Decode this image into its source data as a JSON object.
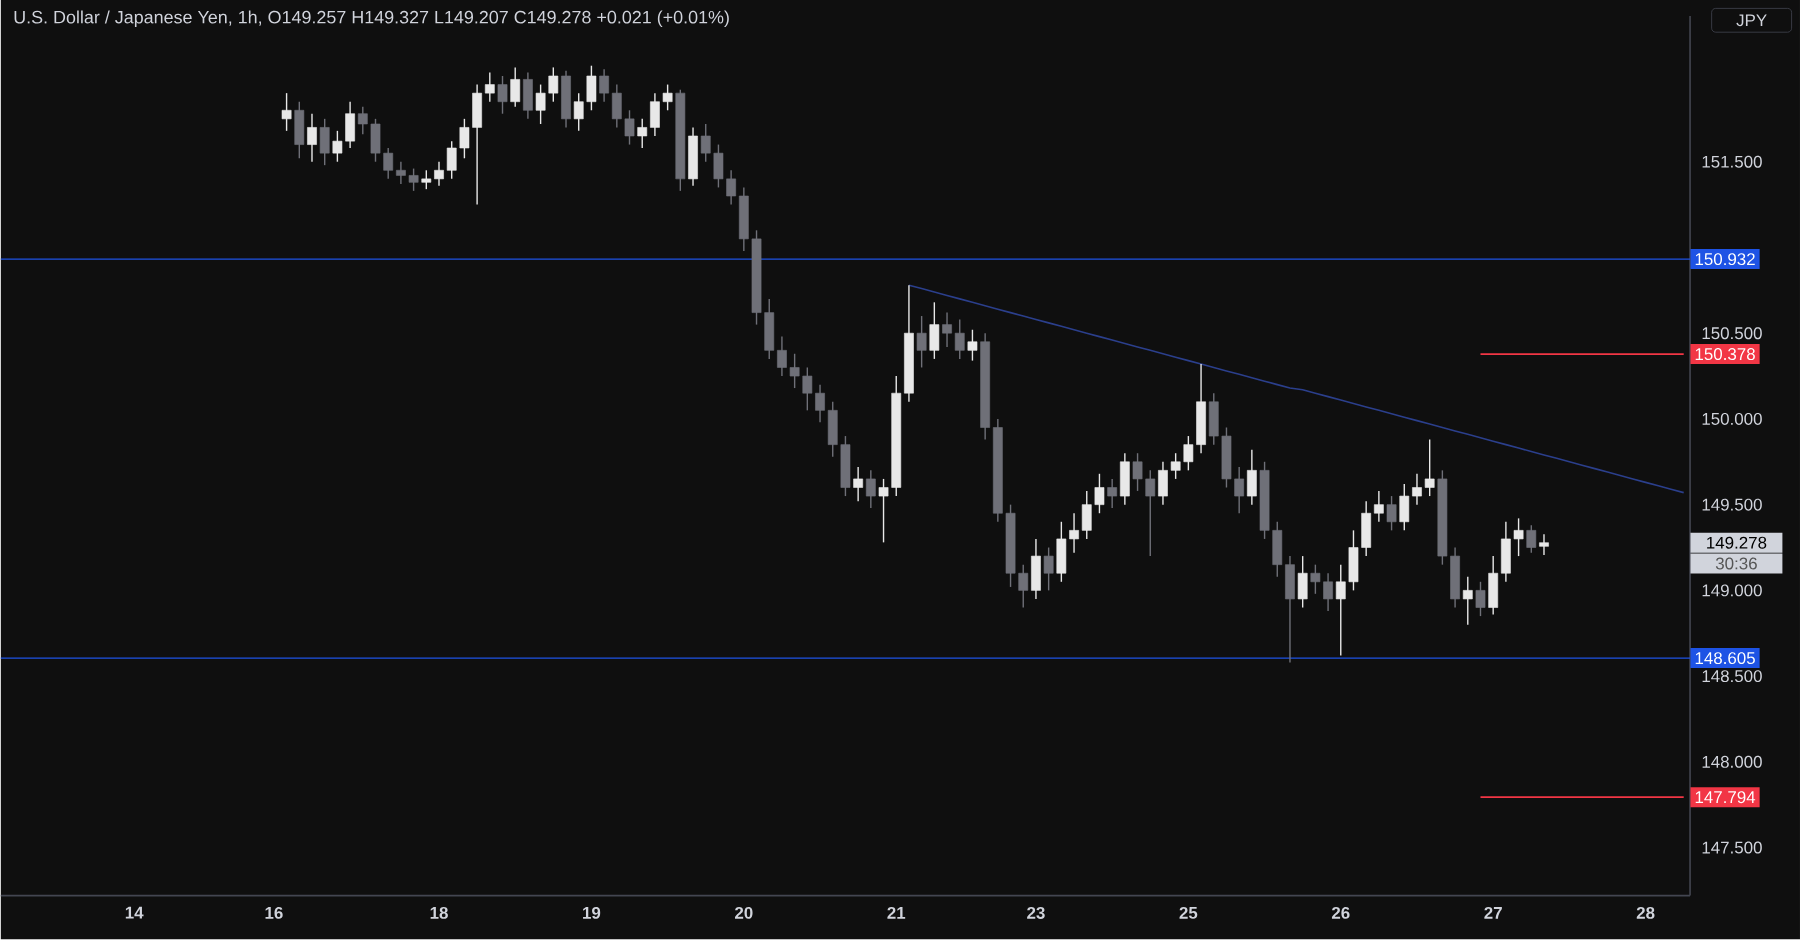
{
  "chart_data": {
    "type": "candlestick",
    "title": "U.S. Dollar / Japanese Yen, 1h, O149.257 H149.327 L149.207 C149.278 +0.021 (+0.01%)",
    "annotations": [
      "JPY",
      "149.278",
      "30:36"
    ],
    "ylim": [
      147.22,
      152.35
    ],
    "yticks": [
      {
        "value": 147.5,
        "label": "147.500"
      },
      {
        "value": 148.0,
        "label": "148.000"
      },
      {
        "value": 148.5,
        "label": "148.500"
      },
      {
        "value": 149.0,
        "label": "149.000"
      },
      {
        "value": 149.5,
        "label": "149.500"
      },
      {
        "value": 150.0,
        "label": "150.000"
      },
      {
        "value": 150.5,
        "label": "150.500"
      },
      {
        "value": 151.5,
        "label": "151.500"
      }
    ],
    "ref_lines": [
      {
        "axis": "y",
        "value": 150.932,
        "label": "150.932",
        "color": "#1e53e5"
      },
      {
        "axis": "y",
        "value": 148.605,
        "label": "148.605",
        "color": "#1e53e5"
      }
    ],
    "categories": [
      null,
      null,
      null,
      null,
      null,
      null,
      null,
      null,
      null,
      null,
      "14",
      null,
      null,
      null,
      null,
      null,
      null,
      null,
      null,
      null,
      null,
      "16",
      null,
      null,
      null,
      null,
      null,
      null,
      null,
      null,
      null,
      null,
      null,
      null,
      "18",
      null,
      null,
      null,
      null,
      null,
      null,
      null,
      null,
      null,
      null,
      null,
      "19",
      null,
      null,
      null,
      null,
      null,
      null,
      null,
      null,
      null,
      null,
      null,
      "20",
      null,
      null,
      null,
      null,
      null,
      null,
      null,
      null,
      null,
      null,
      null,
      "21",
      null,
      null,
      null,
      null,
      null,
      null,
      null,
      null,
      null,
      null,
      "23",
      null,
      null,
      null,
      null,
      null,
      null,
      null,
      null,
      null,
      null,
      null,
      "25",
      null,
      null,
      null,
      null,
      null,
      null,
      null,
      null,
      null,
      null,
      null,
      "26",
      null,
      null,
      null,
      null,
      null,
      null,
      null,
      null,
      null,
      null,
      null,
      "27",
      null,
      null,
      null,
      null,
      null,
      null,
      null,
      null,
      null,
      null,
      null,
      "28",
      null,
      null,
      null
    ],
    "series": [
      {
        "type": "line",
        "color": "#2b3f8c",
        "values": [
          null,
          null,
          null,
          null,
          null,
          null,
          null,
          null,
          null,
          null,
          null,
          null,
          null,
          null,
          null,
          null,
          null,
          null,
          null,
          null,
          null,
          null,
          null,
          null,
          null,
          null,
          null,
          null,
          null,
          null,
          null,
          null,
          null,
          null,
          null,
          null,
          null,
          null,
          null,
          null,
          null,
          null,
          null,
          null,
          null,
          null,
          null,
          null,
          null,
          null,
          null,
          null,
          null,
          null,
          null,
          null,
          null,
          null,
          null,
          null,
          null,
          null,
          null,
          null,
          null,
          null,
          null,
          null,
          null,
          null,
          null,
          150.78,
          150.76,
          150.74,
          150.72,
          150.7,
          150.68,
          150.66,
          150.64,
          150.62,
          150.6,
          150.58,
          150.56,
          150.54,
          150.52,
          150.5,
          150.48,
          150.46,
          150.44,
          150.42,
          150.4,
          150.38,
          150.36,
          150.34,
          150.32,
          150.3,
          150.28,
          150.26,
          150.24,
          150.22,
          150.2,
          150.18,
          150.17,
          150.15,
          150.13,
          150.11,
          150.09,
          150.07,
          150.05,
          150.03,
          150.01,
          149.99,
          149.97,
          149.95,
          149.93,
          149.91,
          149.89,
          149.87,
          149.85,
          149.83,
          149.81,
          149.79,
          149.77,
          149.75,
          149.73,
          149.71,
          149.69,
          149.67,
          149.65,
          149.63,
          149.61,
          149.59,
          149.57
        ]
      },
      {
        "type": "line",
        "color": "#f23645",
        "values": [
          null,
          null,
          null,
          null,
          null,
          null,
          null,
          null,
          null,
          null,
          null,
          null,
          null,
          null,
          null,
          null,
          null,
          null,
          null,
          null,
          null,
          null,
          null,
          null,
          null,
          null,
          null,
          null,
          null,
          null,
          null,
          null,
          null,
          null,
          null,
          null,
          null,
          null,
          null,
          null,
          null,
          null,
          null,
          null,
          null,
          null,
          null,
          null,
          null,
          null,
          null,
          null,
          null,
          null,
          null,
          null,
          null,
          null,
          null,
          null,
          null,
          null,
          null,
          null,
          null,
          null,
          null,
          null,
          null,
          null,
          null,
          null,
          null,
          null,
          null,
          null,
          null,
          null,
          null,
          null,
          null,
          null,
          null,
          null,
          null,
          null,
          null,
          null,
          null,
          null,
          null,
          null,
          null,
          null,
          null,
          null,
          null,
          null,
          null,
          null,
          null,
          null,
          null,
          null,
          null,
          null,
          null,
          null,
          null,
          null,
          null,
          null,
          null,
          null,
          null,
          null,
          150.378,
          150.378,
          150.378,
          150.378,
          150.378,
          150.378,
          150.378,
          150.378,
          150.378,
          150.378,
          150.378,
          150.378,
          150.378,
          150.378,
          150.378,
          150.378,
          150.378
        ],
        "value_labels": [
          null,
          null,
          null,
          null,
          null,
          null,
          null,
          null,
          null,
          null,
          null,
          null,
          null,
          null,
          null,
          null,
          null,
          null,
          null,
          null,
          null,
          null,
          null,
          null,
          null,
          null,
          null,
          null,
          null,
          null,
          null,
          null,
          null,
          null,
          null,
          null,
          null,
          null,
          null,
          null,
          null,
          null,
          null,
          null,
          null,
          null,
          null,
          null,
          null,
          null,
          null,
          null,
          null,
          null,
          null,
          null,
          null,
          null,
          null,
          null,
          null,
          null,
          null,
          null,
          null,
          null,
          null,
          null,
          null,
          null,
          null,
          null,
          null,
          null,
          null,
          null,
          null,
          null,
          null,
          null,
          null,
          null,
          null,
          null,
          null,
          null,
          null,
          null,
          null,
          null,
          null,
          null,
          null,
          null,
          null,
          null,
          null,
          null,
          null,
          null,
          null,
          null,
          null,
          null,
          null,
          null,
          null,
          null,
          null,
          null,
          null,
          null,
          null,
          null,
          null,
          null,
          null,
          null,
          null,
          null,
          null,
          null,
          null,
          null,
          null,
          null,
          null,
          null,
          null,
          null,
          null,
          null,
          "150.378"
        ]
      },
      {
        "type": "line",
        "color": "#f23645",
        "values": [
          null,
          null,
          null,
          null,
          null,
          null,
          null,
          null,
          null,
          null,
          null,
          null,
          null,
          null,
          null,
          null,
          null,
          null,
          null,
          null,
          null,
          null,
          null,
          null,
          null,
          null,
          null,
          null,
          null,
          null,
          null,
          null,
          null,
          null,
          null,
          null,
          null,
          null,
          null,
          null,
          null,
          null,
          null,
          null,
          null,
          null,
          null,
          null,
          null,
          null,
          null,
          null,
          null,
          null,
          null,
          null,
          null,
          null,
          null,
          null,
          null,
          null,
          null,
          null,
          null,
          null,
          null,
          null,
          null,
          null,
          null,
          null,
          null,
          null,
          null,
          null,
          null,
          null,
          null,
          null,
          null,
          null,
          null,
          null,
          null,
          null,
          null,
          null,
          null,
          null,
          null,
          null,
          null,
          null,
          null,
          null,
          null,
          null,
          null,
          null,
          null,
          null,
          null,
          null,
          null,
          null,
          null,
          null,
          null,
          null,
          null,
          null,
          null,
          null,
          null,
          null,
          147.794,
          147.794,
          147.794,
          147.794,
          147.794,
          147.794,
          147.794,
          147.794,
          147.794,
          147.794,
          147.794,
          147.794,
          147.794,
          147.794,
          147.794,
          147.794,
          147.794
        ],
        "value_labels": [
          null,
          null,
          null,
          null,
          null,
          null,
          null,
          null,
          null,
          null,
          null,
          null,
          null,
          null,
          null,
          null,
          null,
          null,
          null,
          null,
          null,
          null,
          null,
          null,
          null,
          null,
          null,
          null,
          null,
          null,
          null,
          null,
          null,
          null,
          null,
          null,
          null,
          null,
          null,
          null,
          null,
          null,
          null,
          null,
          null,
          null,
          null,
          null,
          null,
          null,
          null,
          null,
          null,
          null,
          null,
          null,
          null,
          null,
          null,
          null,
          null,
          null,
          null,
          null,
          null,
          null,
          null,
          null,
          null,
          null,
          null,
          null,
          null,
          null,
          null,
          null,
          null,
          null,
          null,
          null,
          null,
          null,
          null,
          null,
          null,
          null,
          null,
          null,
          null,
          null,
          null,
          null,
          null,
          null,
          null,
          null,
          null,
          null,
          null,
          null,
          null,
          null,
          null,
          null,
          null,
          null,
          null,
          null,
          null,
          null,
          null,
          null,
          null,
          null,
          null,
          null,
          null,
          null,
          null,
          null,
          null,
          null,
          null,
          null,
          null,
          null,
          null,
          null,
          null,
          null,
          null,
          null,
          "147.794"
        ]
      }
    ],
    "ohlc": [
      null,
      null,
      null,
      null,
      null,
      null,
      null,
      null,
      null,
      null,
      null,
      null,
      null,
      null,
      null,
      null,
      null,
      null,
      null,
      null,
      null,
      null,
      [
        151.75,
        151.9,
        151.68,
        151.8
      ],
      [
        151.8,
        151.85,
        151.52,
        151.6
      ],
      [
        151.6,
        151.78,
        151.5,
        151.7
      ],
      [
        151.7,
        151.75,
        151.48,
        151.55
      ],
      [
        151.55,
        151.68,
        151.5,
        151.62
      ],
      [
        151.62,
        151.85,
        151.58,
        151.78
      ],
      [
        151.78,
        151.82,
        151.66,
        151.72
      ],
      [
        151.72,
        151.75,
        151.5,
        151.55
      ],
      [
        151.55,
        151.58,
        151.4,
        151.45
      ],
      [
        151.45,
        151.5,
        151.37,
        151.42
      ],
      [
        151.42,
        151.46,
        151.33,
        151.38
      ],
      [
        151.38,
        151.45,
        151.34,
        151.4
      ],
      [
        151.4,
        151.5,
        151.36,
        151.45
      ],
      [
        151.45,
        151.62,
        151.4,
        151.58
      ],
      [
        151.58,
        151.75,
        151.52,
        151.7
      ],
      [
        151.7,
        151.95,
        151.25,
        151.9
      ],
      [
        151.9,
        152.02,
        151.85,
        151.95
      ],
      [
        151.95,
        152.0,
        151.78,
        151.85
      ],
      [
        151.85,
        152.05,
        151.82,
        151.98
      ],
      [
        151.98,
        152.02,
        151.75,
        151.8
      ],
      [
        151.8,
        151.95,
        151.72,
        151.9
      ],
      [
        151.9,
        152.05,
        151.85,
        152.0
      ],
      [
        152.0,
        152.03,
        151.7,
        151.75
      ],
      [
        151.75,
        151.9,
        151.68,
        151.85
      ],
      [
        151.85,
        152.06,
        151.8,
        152.0
      ],
      [
        152.0,
        152.04,
        151.85,
        151.9
      ],
      [
        151.9,
        151.95,
        151.7,
        151.75
      ],
      [
        151.75,
        151.8,
        151.6,
        151.65
      ],
      [
        151.65,
        151.75,
        151.58,
        151.7
      ],
      [
        151.7,
        151.9,
        151.65,
        151.85
      ],
      [
        151.85,
        151.95,
        151.8,
        151.9
      ],
      [
        151.9,
        151.92,
        151.33,
        151.4
      ],
      [
        151.4,
        151.7,
        151.36,
        151.65
      ],
      [
        151.65,
        151.72,
        151.5,
        151.55
      ],
      [
        151.55,
        151.6,
        151.35,
        151.4
      ],
      [
        151.4,
        151.45,
        151.25,
        151.3
      ],
      [
        151.3,
        151.35,
        150.98,
        151.05
      ],
      [
        151.05,
        151.1,
        150.55,
        150.62
      ],
      [
        150.62,
        150.7,
        150.35,
        150.4
      ],
      [
        150.4,
        150.48,
        150.25,
        150.3
      ],
      [
        150.3,
        150.38,
        150.18,
        150.25
      ],
      [
        150.25,
        150.3,
        150.05,
        150.15
      ],
      [
        150.15,
        150.2,
        149.98,
        150.05
      ],
      [
        150.05,
        150.1,
        149.78,
        149.85
      ],
      [
        149.85,
        149.9,
        149.55,
        149.6
      ],
      [
        149.6,
        149.72,
        149.52,
        149.65
      ],
      [
        149.65,
        149.7,
        149.48,
        149.55
      ],
      [
        149.55,
        149.65,
        149.28,
        149.6
      ],
      [
        149.6,
        150.25,
        149.55,
        150.15
      ],
      [
        150.15,
        150.78,
        150.1,
        150.5
      ],
      [
        150.5,
        150.6,
        150.3,
        150.4
      ],
      [
        150.4,
        150.68,
        150.35,
        150.55
      ],
      [
        150.55,
        150.62,
        150.42,
        150.5
      ],
      [
        150.5,
        150.58,
        150.35,
        150.4
      ],
      [
        150.4,
        150.52,
        150.34,
        150.45
      ],
      [
        150.45,
        150.5,
        149.88,
        149.95
      ],
      [
        149.95,
        150.0,
        149.4,
        149.45
      ],
      [
        149.45,
        149.5,
        149.02,
        149.1
      ],
      [
        149.1,
        149.15,
        148.9,
        149.0
      ],
      [
        149.0,
        149.3,
        148.95,
        149.2
      ],
      [
        149.2,
        149.25,
        149.0,
        149.1
      ],
      [
        149.1,
        149.4,
        149.05,
        149.3
      ],
      [
        149.3,
        149.45,
        149.22,
        149.35
      ],
      [
        149.35,
        149.58,
        149.3,
        149.5
      ],
      [
        149.5,
        149.68,
        149.45,
        149.6
      ],
      [
        149.6,
        149.65,
        149.48,
        149.55
      ],
      [
        149.55,
        149.8,
        149.5,
        149.75
      ],
      [
        149.75,
        149.8,
        149.58,
        149.65
      ],
      [
        149.65,
        149.7,
        149.2,
        149.55
      ],
      [
        149.55,
        149.75,
        149.5,
        149.7
      ],
      [
        149.7,
        149.8,
        149.65,
        149.75
      ],
      [
        149.75,
        149.9,
        149.7,
        149.85
      ],
      [
        149.85,
        150.32,
        149.8,
        150.1
      ],
      [
        150.1,
        150.15,
        149.85,
        149.9
      ],
      [
        149.9,
        149.95,
        149.6,
        149.65
      ],
      [
        149.65,
        149.72,
        149.45,
        149.55
      ],
      [
        149.55,
        149.82,
        149.5,
        149.7
      ],
      [
        149.7,
        149.75,
        149.3,
        149.35
      ],
      [
        149.35,
        149.4,
        149.08,
        149.15
      ],
      [
        149.15,
        149.2,
        148.58,
        148.95
      ],
      [
        148.95,
        149.2,
        148.9,
        149.1
      ],
      [
        149.1,
        149.15,
        148.98,
        149.05
      ],
      [
        149.05,
        149.1,
        148.88,
        148.95
      ],
      [
        148.95,
        149.15,
        148.62,
        149.05
      ],
      [
        149.05,
        149.35,
        149.0,
        149.25
      ],
      [
        149.25,
        149.52,
        149.2,
        149.45
      ],
      [
        149.45,
        149.58,
        149.4,
        149.5
      ],
      [
        149.5,
        149.55,
        149.35,
        149.4
      ],
      [
        149.4,
        149.62,
        149.35,
        149.55
      ],
      [
        149.55,
        149.68,
        149.5,
        149.6
      ],
      [
        149.6,
        149.88,
        149.55,
        149.65
      ],
      [
        149.65,
        149.7,
        149.15,
        149.2
      ],
      [
        149.2,
        149.25,
        148.9,
        148.95
      ],
      [
        148.95,
        149.08,
        148.8,
        149.0
      ],
      [
        149.0,
        149.05,
        148.85,
        148.9
      ],
      [
        148.9,
        149.2,
        148.86,
        149.1
      ],
      [
        149.1,
        149.4,
        149.05,
        149.3
      ],
      [
        149.3,
        149.42,
        149.2,
        149.35
      ],
      [
        149.35,
        149.38,
        149.22,
        149.25
      ],
      [
        149.257,
        149.327,
        149.207,
        149.278
      ],
      null,
      null,
      null,
      null,
      null,
      null,
      null,
      null,
      null,
      null,
      null
    ],
    "colors": [
      null,
      null,
      null,
      null,
      null,
      null,
      null,
      null,
      null,
      null,
      null,
      null,
      null,
      null,
      null,
      null,
      null,
      null,
      null,
      null,
      null,
      null,
      "#e8e8e8",
      "#6f7078",
      "#e8e8e8",
      "#6f7078",
      "#e8e8e8",
      "#e8e8e8",
      "#6f7078",
      "#6f7078",
      "#6f7078",
      "#6f7078",
      "#6f7078",
      "#e8e8e8",
      "#e8e8e8",
      "#e8e8e8",
      "#e8e8e8",
      "#e8e8e8",
      "#e8e8e8",
      "#6f7078",
      "#e8e8e8",
      "#6f7078",
      "#e8e8e8",
      "#e8e8e8",
      "#6f7078",
      "#e8e8e8",
      "#e8e8e8",
      "#6f7078",
      "#6f7078",
      "#6f7078",
      "#e8e8e8",
      "#e8e8e8",
      "#e8e8e8",
      "#6f7078",
      "#e8e8e8",
      "#6f7078",
      "#6f7078",
      "#6f7078",
      "#6f7078",
      "#6f7078",
      "#6f7078",
      "#6f7078",
      "#6f7078",
      "#6f7078",
      "#6f7078",
      "#6f7078",
      "#6f7078",
      "#e8e8e8",
      "#6f7078",
      "#e8e8e8",
      "#e8e8e8",
      "#e8e8e8",
      "#6f7078",
      "#e8e8e8",
      "#6f7078",
      "#6f7078",
      "#e8e8e8",
      "#6f7078",
      "#6f7078",
      "#6f7078",
      "#6f7078",
      "#e8e8e8",
      "#6f7078",
      "#e8e8e8",
      "#e8e8e8",
      "#e8e8e8",
      "#e8e8e8",
      "#6f7078",
      "#e8e8e8",
      "#6f7078",
      "#6f7078",
      "#e8e8e8",
      "#e8e8e8",
      "#e8e8e8",
      "#e8e8e8",
      "#6f7078",
      "#6f7078",
      "#6f7078",
      "#e8e8e8",
      "#6f7078",
      "#6f7078",
      "#6f7078",
      "#e8e8e8",
      "#6f7078",
      "#6f7078",
      "#e8e8e8",
      "#e8e8e8",
      "#e8e8e8",
      "#e8e8e8",
      "#6f7078",
      "#e8e8e8",
      "#e8e8e8",
      "#e8e8e8",
      "#6f7078",
      "#6f7078",
      "#e8e8e8",
      "#6f7078",
      "#e8e8e8",
      "#e8e8e8",
      "#e8e8e8",
      "#6f7078",
      "#e8e8e8",
      null,
      null,
      null,
      null,
      null,
      null,
      null,
      null,
      null,
      null,
      null
    ]
  }
}
